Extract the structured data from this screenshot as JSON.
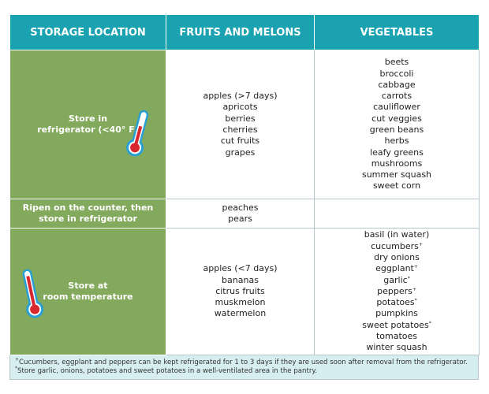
{
  "table": {
    "headers": [
      "STORAGE LOCATION",
      "FRUITS AND MELONS",
      "VEGETABLES"
    ],
    "rows": [
      {
        "location": [
          "Store in",
          "refrigerator (<40° F)"
        ],
        "fruits": [
          {
            "name": "apples (>7 days)"
          },
          {
            "name": "apricots"
          },
          {
            "name": "berries"
          },
          {
            "name": "cherries"
          },
          {
            "name": "cut fruits"
          },
          {
            "name": "grapes"
          }
        ],
        "vegetables": [
          {
            "name": "beets"
          },
          {
            "name": "broccoli"
          },
          {
            "name": "cabbage"
          },
          {
            "name": "carrots"
          },
          {
            "name": "cauliflower"
          },
          {
            "name": "cut veggies"
          },
          {
            "name": "green beans"
          },
          {
            "name": "herbs"
          },
          {
            "name": "leafy greens"
          },
          {
            "name": "mushrooms"
          },
          {
            "name": "summer squash"
          },
          {
            "name": "sweet corn"
          }
        ]
      },
      {
        "location": [
          "Ripen on the counter, then",
          "store in refrigerator"
        ],
        "fruits": [
          {
            "name": "peaches"
          },
          {
            "name": "pears"
          }
        ],
        "vegetables": []
      },
      {
        "location": [
          "Store at",
          "room temperature"
        ],
        "fruits": [
          {
            "name": "apples (<7 days)"
          },
          {
            "name": "bananas"
          },
          {
            "name": "citrus fruits"
          },
          {
            "name": "muskmelon"
          },
          {
            "name": "watermelon"
          }
        ],
        "vegetables": [
          {
            "name": "basil (in water)"
          },
          {
            "name": "cucumbers",
            "mark": "+"
          },
          {
            "name": "dry onions"
          },
          {
            "name": "eggplant",
            "mark": "+"
          },
          {
            "name": "garlic",
            "mark": "*"
          },
          {
            "name": "peppers",
            "mark": "+"
          },
          {
            "name": "potatoes",
            "mark": "*"
          },
          {
            "name": "pumpkins"
          },
          {
            "name": "sweet potatoes",
            "mark": "*"
          },
          {
            "name": "tomatoes"
          },
          {
            "name": "winter squash"
          }
        ]
      }
    ],
    "footnotes": [
      {
        "mark": "+",
        "text": "Cucumbers, eggplant and peppers can be kept refrigerated for 1 to 3 days if they are used soon after removal from the refrigerator."
      },
      {
        "mark": "*",
        "text": "Store garlic, onions, potatoes and sweet potatoes in a well-ventilated area in the pantry."
      }
    ]
  }
}
